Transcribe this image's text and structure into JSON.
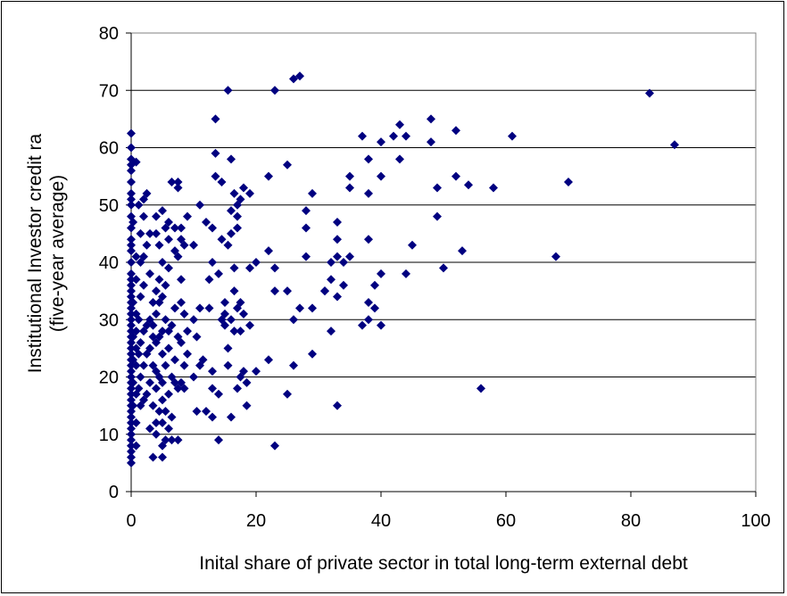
{
  "chart_data": {
    "type": "scatter",
    "title": "",
    "xlabel": "Inital share of private sector in total long-term external debt",
    "ylabel_line1": "Institutional Investor credit ra",
    "ylabel_line2": "(five-year average)",
    "xlim": [
      0,
      100
    ],
    "ylim": [
      0,
      80
    ],
    "xticks": [
      0,
      20,
      40,
      60,
      80,
      100
    ],
    "yticks": [
      0,
      10,
      20,
      30,
      40,
      50,
      60,
      70,
      80
    ],
    "xtick_labels": [
      "0",
      "20",
      "40",
      "60",
      "80",
      "100"
    ],
    "ytick_labels": [
      "0",
      "10",
      "20",
      "30",
      "40",
      "50",
      "60",
      "70",
      "80"
    ],
    "grid": "horizontal",
    "legend": "none",
    "marker": "diamond",
    "marker_color": "#000080",
    "points": [
      [
        0,
        5
      ],
      [
        0,
        6
      ],
      [
        0,
        7
      ],
      [
        0,
        8
      ],
      [
        0,
        9
      ],
      [
        0,
        10
      ],
      [
        0,
        11
      ],
      [
        0,
        12
      ],
      [
        0,
        13
      ],
      [
        0,
        14
      ],
      [
        0,
        15
      ],
      [
        0,
        16
      ],
      [
        0,
        17
      ],
      [
        0,
        18
      ],
      [
        0,
        19
      ],
      [
        0,
        20
      ],
      [
        0,
        21
      ],
      [
        0,
        22
      ],
      [
        0,
        23
      ],
      [
        0,
        24
      ],
      [
        0,
        25
      ],
      [
        0,
        26
      ],
      [
        0,
        27
      ],
      [
        0,
        28
      ],
      [
        0,
        29
      ],
      [
        0,
        30
      ],
      [
        0,
        31
      ],
      [
        0,
        32
      ],
      [
        0,
        33
      ],
      [
        0,
        34
      ],
      [
        0,
        35
      ],
      [
        0,
        36
      ],
      [
        0,
        37
      ],
      [
        0,
        38
      ],
      [
        0,
        40
      ],
      [
        0,
        42
      ],
      [
        0,
        43
      ],
      [
        0,
        44
      ],
      [
        0,
        46
      ],
      [
        0,
        48
      ],
      [
        0,
        50
      ],
      [
        0,
        51
      ],
      [
        0,
        52
      ],
      [
        0,
        54
      ],
      [
        0,
        56
      ],
      [
        0,
        57
      ],
      [
        0,
        58
      ],
      [
        0,
        60
      ],
      [
        0,
        62.5
      ],
      [
        0.3,
        15
      ],
      [
        0.3,
        19
      ],
      [
        0.3,
        23
      ],
      [
        0.3,
        27
      ],
      [
        0.3,
        33
      ],
      [
        0.3,
        47
      ],
      [
        0.8,
        8
      ],
      [
        0.8,
        12
      ],
      [
        0.8,
        17
      ],
      [
        0.8,
        22
      ],
      [
        0.8,
        25
      ],
      [
        0.8,
        28
      ],
      [
        0.8,
        31
      ],
      [
        0.8,
        37
      ],
      [
        0.8,
        41
      ],
      [
        0.8,
        57.5
      ],
      [
        1.2,
        18
      ],
      [
        1.2,
        24
      ],
      [
        1.2,
        30
      ],
      [
        1.2,
        50
      ],
      [
        1.5,
        15
      ],
      [
        1.5,
        20
      ],
      [
        1.5,
        26
      ],
      [
        1.5,
        34
      ],
      [
        1.5,
        40
      ],
      [
        1.5,
        45
      ],
      [
        2,
        16
      ],
      [
        2,
        22
      ],
      [
        2,
        28
      ],
      [
        2,
        36
      ],
      [
        2,
        41
      ],
      [
        2,
        48
      ],
      [
        2,
        51
      ],
      [
        2.5,
        17
      ],
      [
        2.5,
        24
      ],
      [
        2.5,
        52
      ],
      [
        2.5,
        43
      ],
      [
        2.5,
        29
      ],
      [
        3,
        11
      ],
      [
        3,
        19
      ],
      [
        3,
        25
      ],
      [
        3,
        30
      ],
      [
        3,
        38
      ],
      [
        3,
        45
      ],
      [
        3.5,
        6
      ],
      [
        3.5,
        15
      ],
      [
        3.5,
        22
      ],
      [
        3.5,
        27
      ],
      [
        3.5,
        29
      ],
      [
        3.5,
        33
      ],
      [
        4,
        10
      ],
      [
        4,
        12
      ],
      [
        4,
        18
      ],
      [
        4,
        21
      ],
      [
        4,
        26
      ],
      [
        4,
        31
      ],
      [
        4,
        35
      ],
      [
        4,
        45
      ],
      [
        4,
        48
      ],
      [
        4.5,
        14
      ],
      [
        4.5,
        20
      ],
      [
        4.5,
        27
      ],
      [
        4.5,
        33
      ],
      [
        4.5,
        37
      ],
      [
        4.5,
        43
      ],
      [
        5,
        6
      ],
      [
        5,
        8
      ],
      [
        5,
        12
      ],
      [
        5,
        16
      ],
      [
        5,
        19
      ],
      [
        5,
        24
      ],
      [
        5,
        28
      ],
      [
        5,
        34
      ],
      [
        5,
        40
      ],
      [
        5,
        49
      ],
      [
        5.5,
        9
      ],
      [
        5.5,
        14
      ],
      [
        5.5,
        22
      ],
      [
        5.5,
        30
      ],
      [
        5.5,
        36
      ],
      [
        5.5,
        46
      ],
      [
        6,
        11
      ],
      [
        6,
        17
      ],
      [
        6,
        25
      ],
      [
        6,
        28
      ],
      [
        6,
        39
      ],
      [
        6,
        44
      ],
      [
        6,
        47
      ],
      [
        6.5,
        9
      ],
      [
        6.5,
        13
      ],
      [
        6.5,
        20
      ],
      [
        6.5,
        29
      ],
      [
        6.5,
        54
      ],
      [
        7,
        19
      ],
      [
        7,
        23
      ],
      [
        7,
        32
      ],
      [
        7,
        42
      ],
      [
        7,
        46
      ],
      [
        7.5,
        9
      ],
      [
        7.5,
        18
      ],
      [
        7.5,
        27
      ],
      [
        7.5,
        41
      ],
      [
        7.5,
        53
      ],
      [
        7.5,
        54
      ],
      [
        8,
        19
      ],
      [
        8,
        26
      ],
      [
        8,
        33
      ],
      [
        8,
        37
      ],
      [
        8,
        44
      ],
      [
        8,
        46
      ],
      [
        8.5,
        18
      ],
      [
        8.5,
        22
      ],
      [
        8.5,
        31
      ],
      [
        8.5,
        43
      ],
      [
        9,
        24
      ],
      [
        9,
        28
      ],
      [
        9,
        48
      ],
      [
        10,
        20
      ],
      [
        10,
        30
      ],
      [
        10,
        43
      ],
      [
        10.5,
        27
      ],
      [
        10.5,
        14
      ],
      [
        11,
        22
      ],
      [
        11,
        32
      ],
      [
        11,
        50
      ],
      [
        11.5,
        23
      ],
      [
        12,
        14
      ],
      [
        12,
        47
      ],
      [
        12.5,
        32
      ],
      [
        12.5,
        37
      ],
      [
        13,
        13
      ],
      [
        13,
        18
      ],
      [
        13,
        21
      ],
      [
        13,
        40
      ],
      [
        13,
        46
      ],
      [
        13.5,
        55
      ],
      [
        13.5,
        59
      ],
      [
        13.5,
        65
      ],
      [
        14,
        9
      ],
      [
        14,
        17
      ],
      [
        14,
        38
      ],
      [
        14.5,
        30
      ],
      [
        14.5,
        44
      ],
      [
        14.5,
        54
      ],
      [
        15,
        29
      ],
      [
        15,
        31
      ],
      [
        15,
        33
      ],
      [
        15.5,
        22
      ],
      [
        15.5,
        25
      ],
      [
        15.5,
        43
      ],
      [
        15.5,
        70
      ],
      [
        16,
        13
      ],
      [
        16,
        30
      ],
      [
        16,
        45
      ],
      [
        16,
        49
      ],
      [
        16,
        58
      ],
      [
        16.5,
        28
      ],
      [
        16.5,
        35
      ],
      [
        16.5,
        39
      ],
      [
        16.5,
        52
      ],
      [
        17,
        18
      ],
      [
        17,
        32
      ],
      [
        17,
        46
      ],
      [
        17,
        48
      ],
      [
        17,
        50
      ],
      [
        17.5,
        20
      ],
      [
        17.5,
        28
      ],
      [
        17.5,
        33
      ],
      [
        17.5,
        51
      ],
      [
        18,
        21
      ],
      [
        18,
        31
      ],
      [
        18,
        53
      ],
      [
        18.5,
        15
      ],
      [
        18.5,
        19
      ],
      [
        19,
        29
      ],
      [
        19,
        39
      ],
      [
        19,
        52
      ],
      [
        20,
        21
      ],
      [
        20,
        40
      ],
      [
        22,
        23
      ],
      [
        22,
        42
      ],
      [
        22,
        55
      ],
      [
        23,
        8
      ],
      [
        23,
        35
      ],
      [
        23,
        39
      ],
      [
        23,
        70
      ],
      [
        25,
        17
      ],
      [
        25,
        35
      ],
      [
        25,
        57
      ],
      [
        26,
        22
      ],
      [
        26,
        30
      ],
      [
        26,
        72
      ],
      [
        27,
        32
      ],
      [
        27,
        72.5
      ],
      [
        28,
        41
      ],
      [
        28,
        46
      ],
      [
        28,
        49
      ],
      [
        29,
        24
      ],
      [
        29,
        32
      ],
      [
        29,
        52
      ],
      [
        31,
        35
      ],
      [
        31,
        35
      ],
      [
        32,
        28
      ],
      [
        32,
        37
      ],
      [
        32,
        40
      ],
      [
        33,
        15
      ],
      [
        33,
        34
      ],
      [
        33,
        41
      ],
      [
        33,
        44
      ],
      [
        33,
        47
      ],
      [
        34,
        36
      ],
      [
        34,
        40
      ],
      [
        35,
        41
      ],
      [
        35,
        53
      ],
      [
        35,
        55
      ],
      [
        37,
        29
      ],
      [
        37,
        62
      ],
      [
        38,
        30
      ],
      [
        38,
        33
      ],
      [
        38,
        44
      ],
      [
        38,
        52
      ],
      [
        38,
        58
      ],
      [
        39,
        32
      ],
      [
        39,
        36
      ],
      [
        40,
        29
      ],
      [
        40,
        38
      ],
      [
        40,
        55
      ],
      [
        40,
        61
      ],
      [
        42,
        62
      ],
      [
        43,
        58
      ],
      [
        43,
        64
      ],
      [
        44,
        38
      ],
      [
        44,
        62
      ],
      [
        45,
        43
      ],
      [
        48,
        61
      ],
      [
        48,
        65
      ],
      [
        49,
        48
      ],
      [
        49,
        53
      ],
      [
        50,
        39
      ],
      [
        52,
        55
      ],
      [
        52,
        63
      ],
      [
        53,
        42
      ],
      [
        54,
        53.5
      ],
      [
        56,
        18
      ],
      [
        58,
        53
      ],
      [
        61,
        62
      ],
      [
        68,
        41
      ],
      [
        70,
        54
      ],
      [
        83,
        69.5
      ],
      [
        87,
        60.5
      ]
    ]
  }
}
